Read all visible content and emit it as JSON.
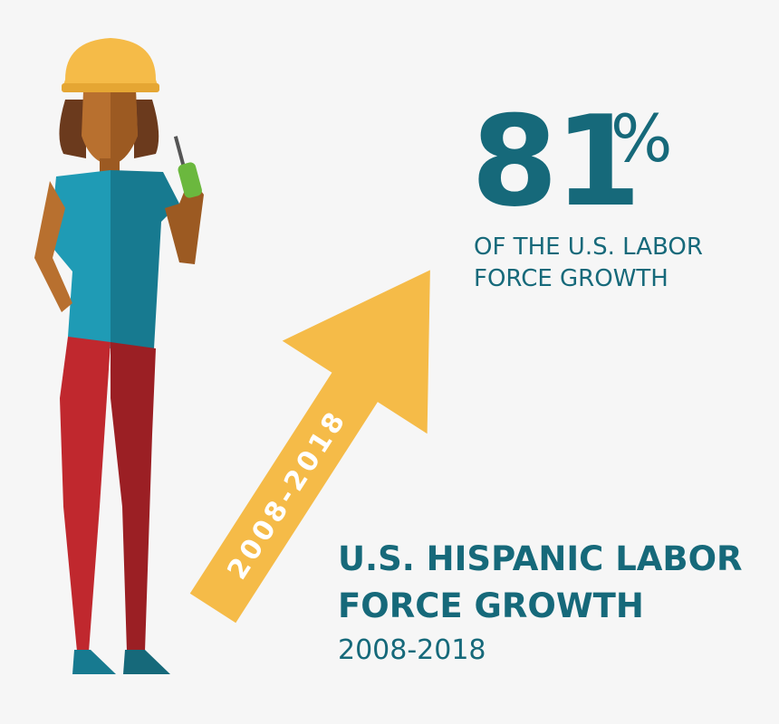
{
  "stat": {
    "number": "81",
    "unit": "%",
    "caption": [
      "OF THE U.S. LABOR",
      "FORCE GROWTH"
    ]
  },
  "arrow_label": "2008-2018",
  "title": [
    "U.S. HISPANIC LABOR",
    "FORCE GROWTH"
  ],
  "subtitle": "2008-2018"
}
